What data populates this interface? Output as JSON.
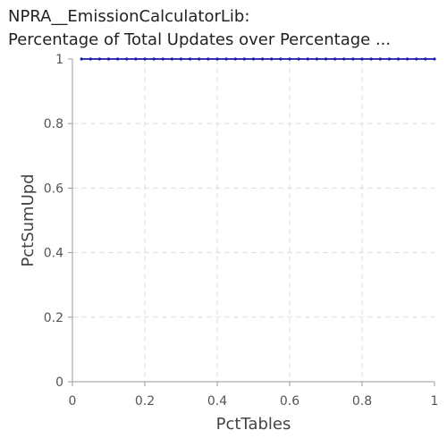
{
  "chart_data": {
    "type": "line",
    "title_lines": [
      "NPRA__EmissionCalculatorLib:",
      "Percentage of Total Updates over Percentage ..."
    ],
    "xlabel": "PctTables",
    "ylabel": "PctSumUpd",
    "xlim": [
      0,
      1
    ],
    "ylim": [
      0,
      1
    ],
    "xticks": [
      "0",
      "0.2",
      "0.4",
      "0.6",
      "0.8",
      "1"
    ],
    "yticks": [
      "0",
      "0.2",
      "0.4",
      "0.6",
      "0.8",
      "1"
    ],
    "grid": true,
    "series": [
      {
        "color": "#1a1aa8",
        "x": [
          0.025,
          0.05,
          0.075,
          0.1,
          0.125,
          0.15,
          0.175,
          0.2,
          0.225,
          0.25,
          0.275,
          0.3,
          0.325,
          0.35,
          0.375,
          0.4,
          0.425,
          0.45,
          0.475,
          0.5,
          0.525,
          0.55,
          0.575,
          0.6,
          0.625,
          0.65,
          0.675,
          0.7,
          0.725,
          0.75,
          0.775,
          0.8,
          0.825,
          0.85,
          0.875,
          0.9,
          0.925,
          0.95,
          0.975,
          1.0
        ],
        "y": [
          1,
          1,
          1,
          1,
          1,
          1,
          1,
          1,
          1,
          1,
          1,
          1,
          1,
          1,
          1,
          1,
          1,
          1,
          1,
          1,
          1,
          1,
          1,
          1,
          1,
          1,
          1,
          1,
          1,
          1,
          1,
          1,
          1,
          1,
          1,
          1,
          1,
          1,
          1,
          1
        ]
      }
    ]
  }
}
